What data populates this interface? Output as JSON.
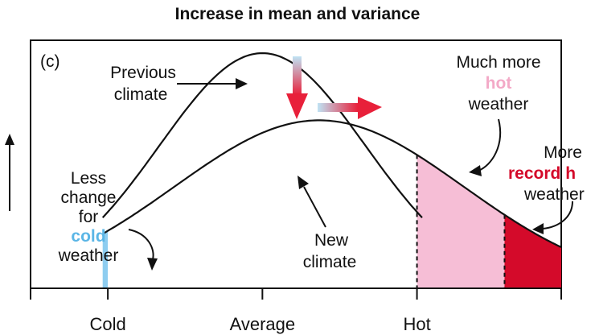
{
  "title": "Increase in mean and variance",
  "panel_label": "(c)",
  "labels": {
    "previous_climate": [
      "Previous",
      "climate"
    ],
    "new_climate": [
      "New",
      "climate"
    ],
    "much_more_hot": {
      "line1": "Much more",
      "hot_word": "hot",
      "line3": "weather"
    },
    "more_record_hot": {
      "line1": "More",
      "record_word": "record h",
      "line3": "weather"
    },
    "less_change_cold": {
      "line1": "Less",
      "line2": "change",
      "line3": "for",
      "cold_word": "cold",
      "line5": "weather"
    }
  },
  "x_ticks": [
    "Cold",
    "Average",
    "Hot"
  ],
  "colors": {
    "cold_region": "#8ecdf0",
    "hot_region": "#f6bed6",
    "record_region": "#d40a2a",
    "arrow": "#e8203a"
  },
  "chart_data": {
    "type": "area",
    "curves": [
      {
        "mean": 0.0,
        "sd": 1.0
      },
      {
        "mean": 0.55,
        "sd": 1.4
      }
    ],
    "x_domain": [
      -2.25,
      2.9
    ],
    "categories": [
      "Cold",
      "Average",
      "Hot"
    ],
    "tick_x": [
      -1.5,
      0.0,
      1.5
    ],
    "hot_threshold": 1.5,
    "record_threshold": 2.35
  }
}
